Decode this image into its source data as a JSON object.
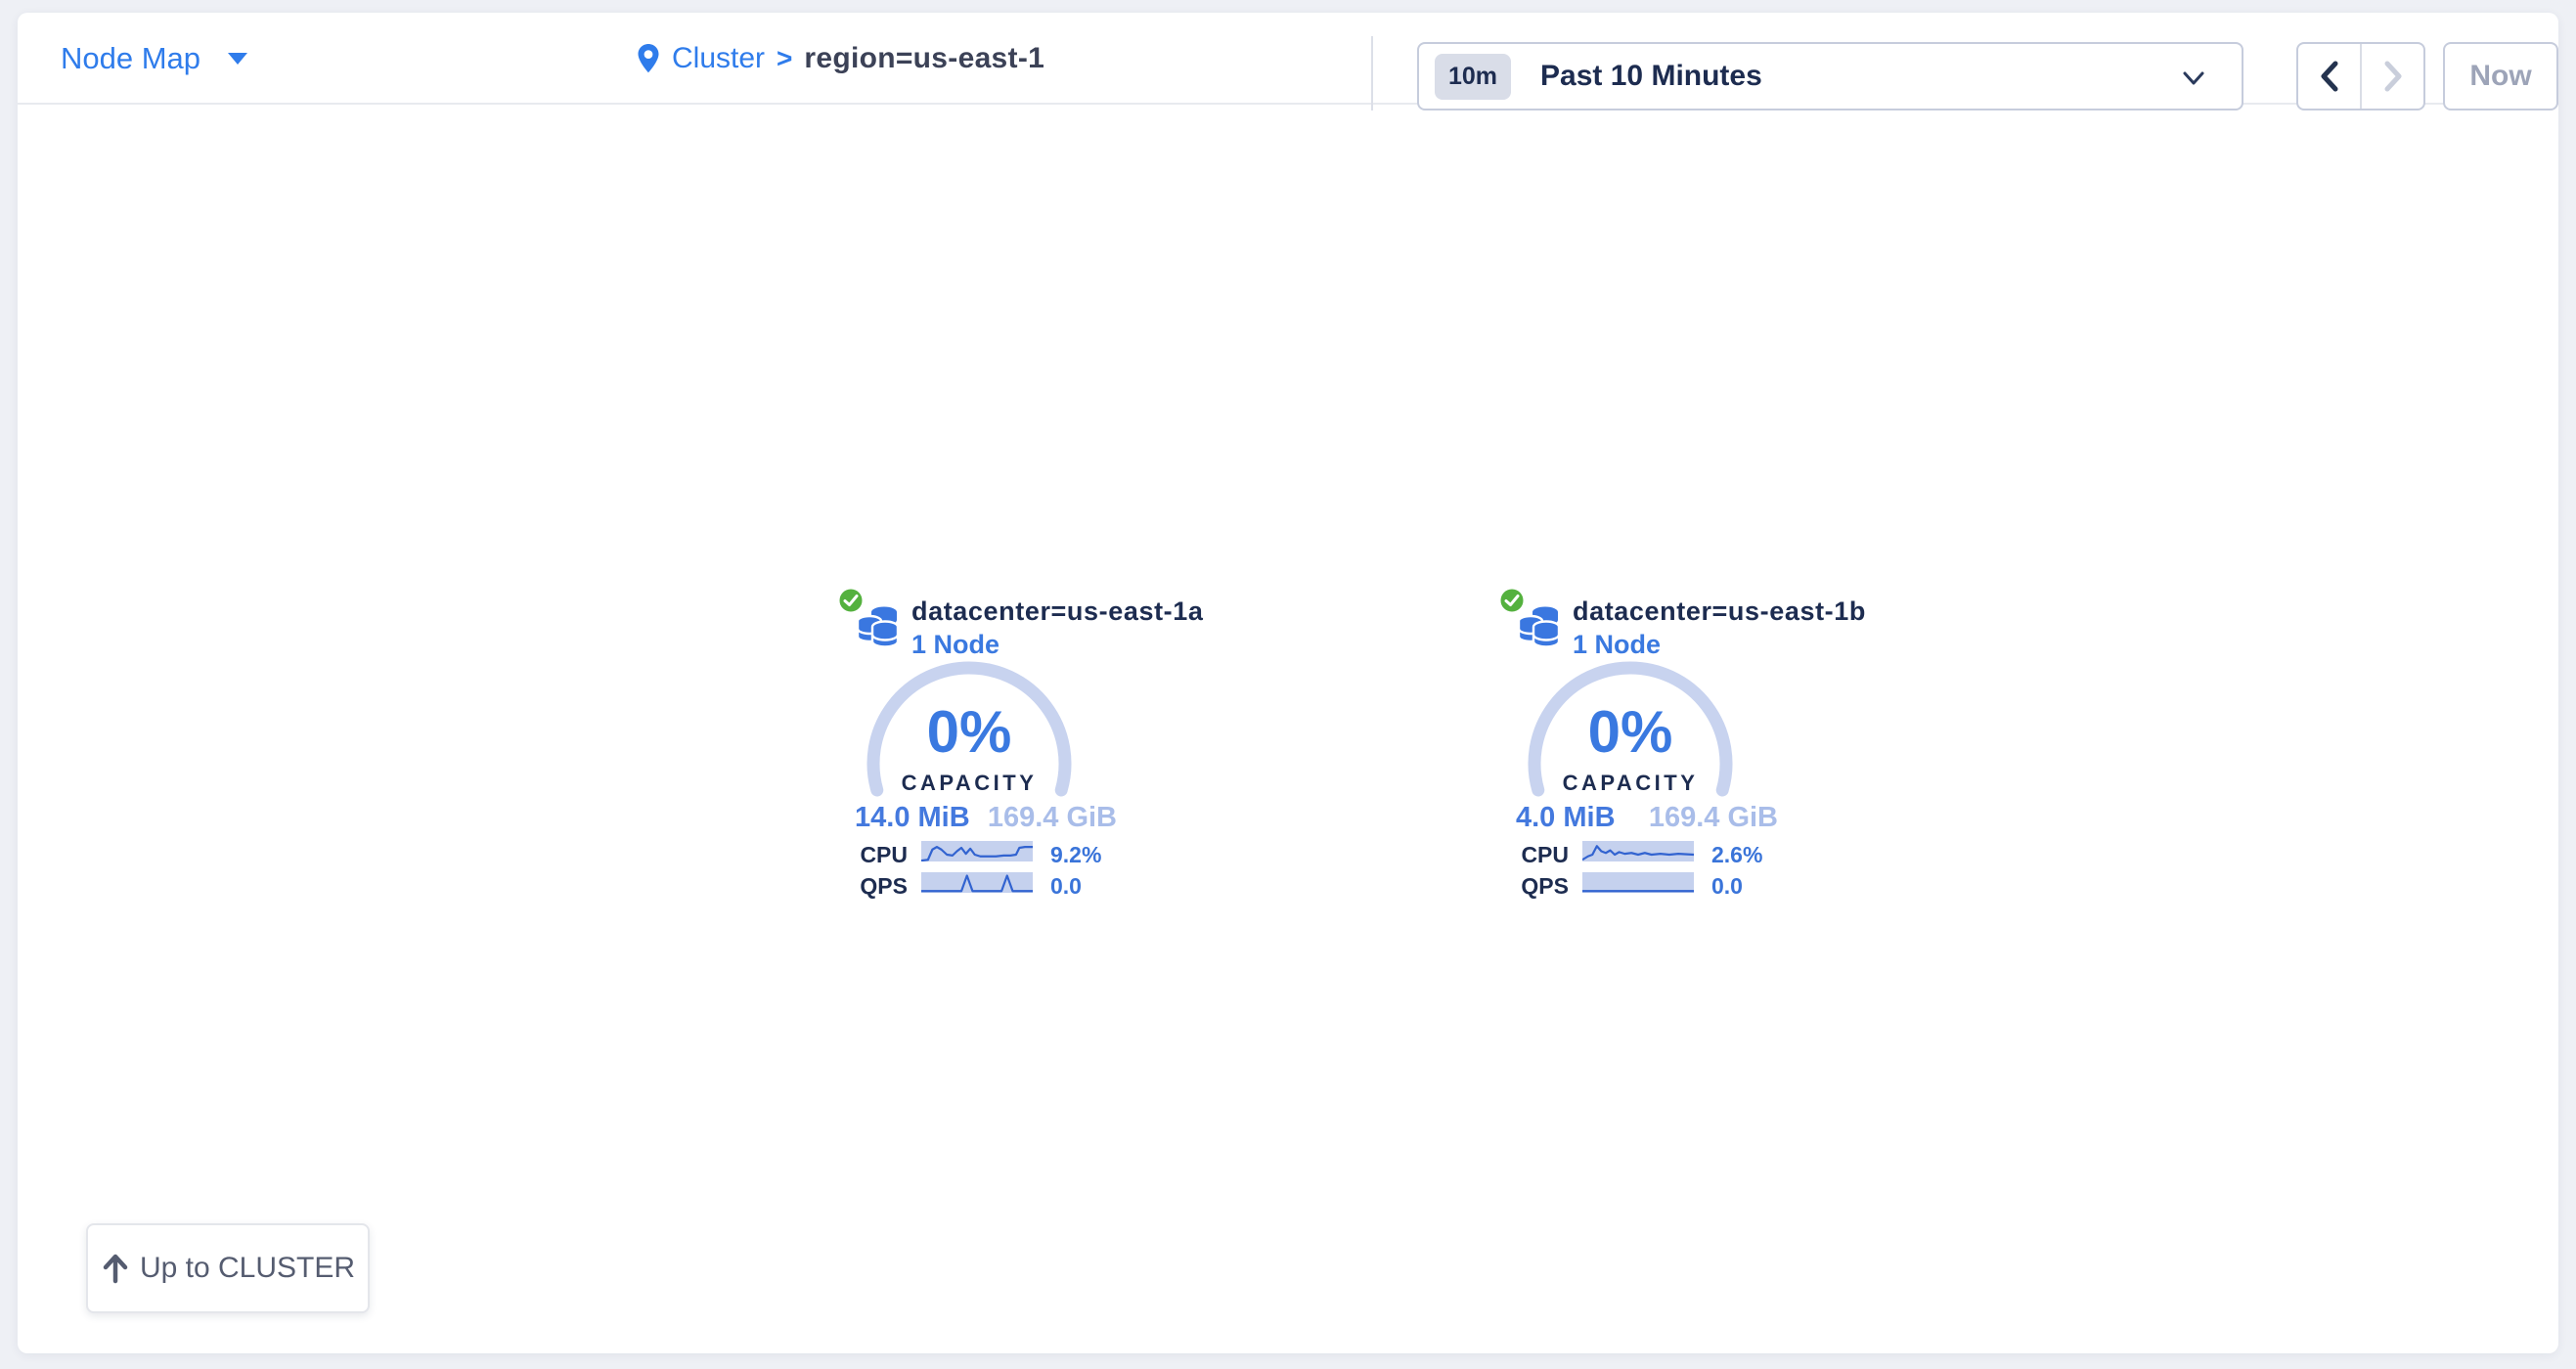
{
  "header": {
    "view_selector_label": "Node Map",
    "breadcrumb": {
      "root": "Cluster",
      "separator": ">",
      "current": "region=us-east-1"
    },
    "time_window": {
      "badge": "10m",
      "label": "Past 10 Minutes"
    },
    "now_label": "Now"
  },
  "datacenters": [
    {
      "name": "datacenter=us-east-1a",
      "node_count": "1 Node",
      "capacity_pct": "0%",
      "capacity_label": "CAPACITY",
      "capacity_used": "14.0 MiB",
      "capacity_total": "169.4 GiB",
      "cpu_label": "CPU",
      "cpu_value": "9.2%",
      "cpu_spark": [
        [
          0,
          23
        ],
        [
          6,
          22
        ],
        [
          10,
          10
        ],
        [
          14,
          7
        ],
        [
          18,
          10
        ],
        [
          23,
          16
        ],
        [
          28,
          17
        ],
        [
          32,
          12
        ],
        [
          36,
          8
        ],
        [
          40,
          15
        ],
        [
          44,
          9
        ],
        [
          48,
          16
        ],
        [
          53,
          18
        ],
        [
          60,
          18
        ],
        [
          67,
          18
        ],
        [
          74,
          17
        ],
        [
          80,
          17
        ],
        [
          85,
          16
        ],
        [
          88,
          8
        ],
        [
          93,
          7
        ],
        [
          100,
          7
        ]
      ],
      "qps_label": "QPS",
      "qps_value": "0.0",
      "qps_spark": [
        [
          0,
          22
        ],
        [
          36,
          22
        ],
        [
          41,
          4
        ],
        [
          46,
          22
        ],
        [
          72,
          22
        ],
        [
          77,
          4
        ],
        [
          82,
          22
        ],
        [
          100,
          22
        ]
      ]
    },
    {
      "name": "datacenter=us-east-1b",
      "node_count": "1 Node",
      "capacity_pct": "0%",
      "capacity_label": "CAPACITY",
      "capacity_used": "4.0 MiB",
      "capacity_total": "169.4 GiB",
      "cpu_label": "CPU",
      "cpu_value": "2.6%",
      "cpu_spark": [
        [
          0,
          22
        ],
        [
          5,
          18
        ],
        [
          9,
          16
        ],
        [
          13,
          6
        ],
        [
          17,
          12
        ],
        [
          21,
          14
        ],
        [
          25,
          11
        ],
        [
          29,
          16
        ],
        [
          33,
          13
        ],
        [
          38,
          15
        ],
        [
          44,
          14
        ],
        [
          50,
          16
        ],
        [
          56,
          14
        ],
        [
          62,
          16
        ],
        [
          70,
          15
        ],
        [
          78,
          16
        ],
        [
          86,
          15
        ],
        [
          100,
          16
        ]
      ],
      "qps_label": "QPS",
      "qps_value": "0.0",
      "qps_spark": [
        [
          0,
          22
        ],
        [
          100,
          22
        ]
      ]
    }
  ],
  "up_button_label": "Up to CLUSTER",
  "colors": {
    "accent_blue": "#2f7ceb",
    "value_blue": "#3a79e0",
    "pale_blue": "#a9bde9",
    "navy": "#1d2c50",
    "gauge_arc": "#c8d3ef",
    "spark_bg": "#c5d1ee",
    "spark_line": "#3263d0",
    "healthy_green": "#54b13e",
    "page_bg": "#eef0f5"
  }
}
